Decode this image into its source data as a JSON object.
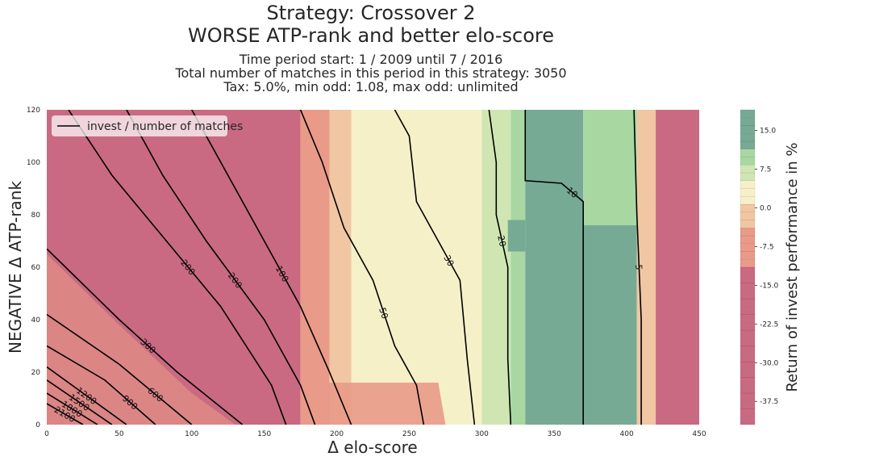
{
  "title": {
    "line1": "Strategy: Crossover 2",
    "line2": "WORSE ATP-rank and better elo-score"
  },
  "subtitle": {
    "line1": "Time period start: 1 / 2009 until 7 / 2016",
    "line2": "Total number of matches in this period in this strategy: 3050",
    "line3": "Tax: 5.0%, min odd: 1.08, max odd: unlimited"
  },
  "colors": {
    "strong_negative": "#c96a82",
    "negative": "#e99a88",
    "slight_negative": "#f1c6a3",
    "neutral": "#f6f0c8",
    "slight_positive": "#cfe6b2",
    "positive": "#a9d7a2",
    "strong_positive": "#77aa94",
    "contour_line": "#000000"
  },
  "chart_data": {
    "type": "heatmap",
    "xlabel": "Δ elo-score",
    "ylabel": "NEGATIVE Δ ATP-rank",
    "x_ticks": [
      "0",
      "50",
      "100",
      "150",
      "200",
      "250",
      "300",
      "350",
      "400",
      "450"
    ],
    "y_ticks": [
      "0",
      "20",
      "40",
      "60",
      "80",
      "100",
      "120"
    ],
    "xlim": [
      0,
      450
    ],
    "ylim": [
      0,
      120
    ],
    "colorbar": {
      "label": "Return of invest performance in %",
      "ticks": [
        "15.0",
        "7.5",
        "0.0",
        "-7.5",
        "-15.0",
        "-22.5",
        "-30.0",
        "-37.5"
      ],
      "range": [
        -42,
        19
      ]
    },
    "legend": {
      "entries": [
        "invest / number of matches"
      ],
      "placement": "top-left"
    },
    "bands": [
      {
        "x": [
          0,
          175
        ],
        "level": "strong_negative"
      },
      {
        "x": [
          175,
          195
        ],
        "level": "negative"
      },
      {
        "x": [
          195,
          210
        ],
        "level": "slight_negative"
      },
      {
        "x": [
          210,
          300
        ],
        "level": "neutral"
      },
      {
        "x": [
          300,
          320
        ],
        "level": "slight_positive"
      },
      {
        "x": [
          320,
          330
        ],
        "level": "positive"
      },
      {
        "x": [
          330,
          370
        ],
        "level": "strong_positive"
      },
      {
        "x": [
          370,
          407
        ],
        "level": "strong_positive_low_positive_high"
      },
      {
        "x": [
          407,
          420
        ],
        "level": "slight_negative"
      },
      {
        "x": [
          420,
          450
        ],
        "level": "strong_negative"
      }
    ],
    "contours": [
      {
        "label": "2100",
        "points": [
          [
            0,
            8
          ],
          [
            25,
            0
          ]
        ]
      },
      {
        "label": "1800",
        "points": [
          [
            0,
            12
          ],
          [
            35,
            0
          ]
        ]
      },
      {
        "label": "1500",
        "points": [
          [
            0,
            17
          ],
          [
            45,
            0
          ]
        ]
      },
      {
        "label": "1200",
        "points": [
          [
            0,
            22
          ],
          [
            55,
            0
          ]
        ]
      },
      {
        "label": "900",
        "points": [
          [
            0,
            30
          ],
          [
            40,
            17
          ],
          [
            75,
            0
          ]
        ]
      },
      {
        "label": "600",
        "points": [
          [
            0,
            42
          ],
          [
            50,
            23
          ],
          [
            100,
            0
          ]
        ]
      },
      {
        "label": "300",
        "points": [
          [
            0,
            67
          ],
          [
            50,
            40
          ],
          [
            90,
            20
          ],
          [
            135,
            0
          ]
        ]
      },
      {
        "label": "200",
        "points": [
          [
            15,
            120
          ],
          [
            45,
            95
          ],
          [
            75,
            75
          ],
          [
            120,
            45
          ],
          [
            155,
            15
          ],
          [
            165,
            0
          ]
        ]
      },
      {
        "label": "200",
        "points": [
          [
            55,
            120
          ],
          [
            80,
            95
          ],
          [
            110,
            70
          ],
          [
            150,
            40
          ],
          [
            175,
            15
          ],
          [
            185,
            0
          ]
        ]
      },
      {
        "label": "100",
        "points": [
          [
            100,
            120
          ],
          [
            125,
            95
          ],
          [
            150,
            70
          ],
          [
            175,
            45
          ],
          [
            195,
            20
          ],
          [
            210,
            0
          ]
        ]
      },
      {
        "label": "50",
        "points": [
          [
            175,
            120
          ],
          [
            190,
            100
          ],
          [
            205,
            75
          ],
          [
            225,
            55
          ],
          [
            240,
            30
          ],
          [
            255,
            15
          ],
          [
            260,
            0
          ]
        ]
      },
      {
        "label": "30",
        "points": [
          [
            240,
            120
          ],
          [
            250,
            110
          ],
          [
            255,
            85
          ],
          [
            270,
            70
          ],
          [
            285,
            55
          ],
          [
            290,
            25
          ],
          [
            295,
            0
          ]
        ]
      },
      {
        "label": "20",
        "points": [
          [
            305,
            120
          ],
          [
            310,
            100
          ],
          [
            310,
            80
          ],
          [
            318,
            60
          ],
          [
            318,
            25
          ],
          [
            320,
            0
          ]
        ]
      },
      {
        "label": "10",
        "points": [
          [
            330,
            120
          ],
          [
            330,
            93
          ],
          [
            355,
            92
          ],
          [
            370,
            85
          ],
          [
            370,
            40
          ],
          [
            370,
            0
          ]
        ]
      },
      {
        "label": "5",
        "points": [
          [
            405,
            120
          ],
          [
            407,
            80
          ],
          [
            410,
            40
          ],
          [
            410,
            0
          ]
        ]
      }
    ]
  }
}
